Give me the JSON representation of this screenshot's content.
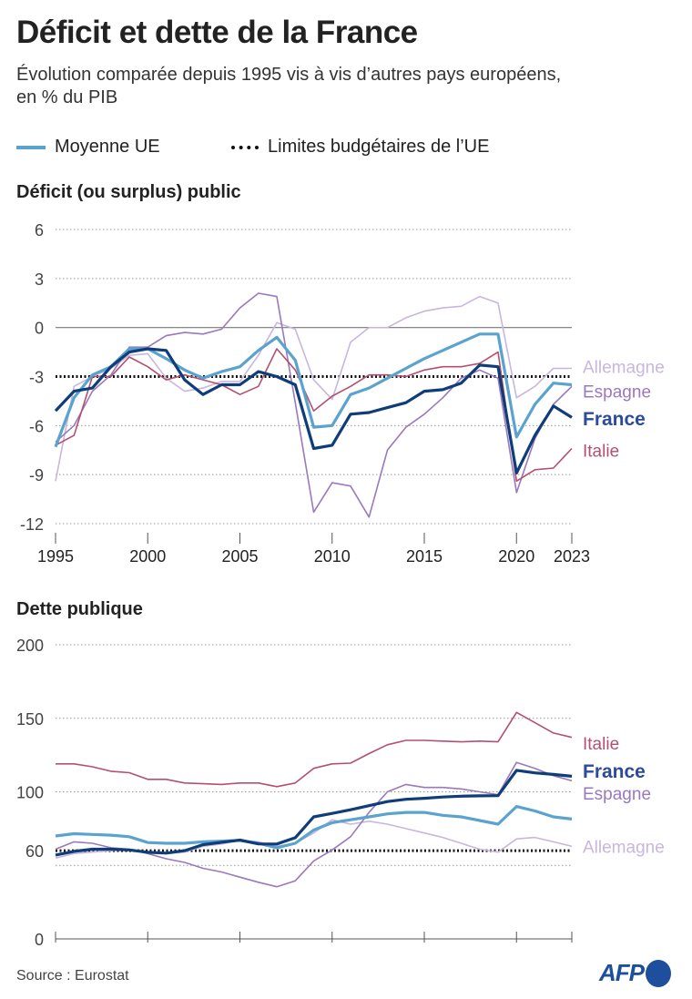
{
  "title": "Déficit et dette de la France",
  "subtitle": "Évolution comparée depuis 1995 vis à vis d’autres pays européens, en % du PIB",
  "legend": {
    "eu": "Moyenne UE",
    "limit": "Limites budgétaires de l’UE"
  },
  "source": "Source : Eurostat",
  "logo": "AFP",
  "colors": {
    "eu": "#5ba3cf",
    "france": "#0f3d7a",
    "allemagne": "#c9b6de",
    "espagne": "#9a78bd",
    "italie": "#b4506e",
    "france_label": "#2d4b9c"
  },
  "chart_data": [
    {
      "type": "line",
      "title": "Déficit (ou surplus) public",
      "ylim": [
        -12,
        6
      ],
      "yticks": [
        6,
        3,
        0,
        -3,
        -6,
        -9,
        -12
      ],
      "xticks": [
        1995,
        2000,
        2005,
        2010,
        2015,
        2020,
        2023
      ],
      "limit": -3,
      "grid": true,
      "x": [
        1995,
        1996,
        1997,
        1998,
        1999,
        2000,
        2001,
        2002,
        2003,
        2004,
        2005,
        2006,
        2007,
        2008,
        2009,
        2010,
        2011,
        2012,
        2013,
        2014,
        2015,
        2016,
        2017,
        2018,
        2019,
        2020,
        2021,
        2022,
        2023
      ],
      "series": [
        {
          "key": "allemagne",
          "name": "Allemagne",
          "values": [
            -9.4,
            -3.6,
            -3.0,
            -2.5,
            -1.7,
            -1.6,
            -3.1,
            -3.9,
            -3.7,
            -3.3,
            -3.3,
            -1.7,
            0.3,
            -0.1,
            -3.2,
            -4.4,
            -0.9,
            0.0,
            0.0,
            0.6,
            1.0,
            1.2,
            1.3,
            1.9,
            1.5,
            -4.3,
            -3.6,
            -2.5,
            -2.5
          ]
        },
        {
          "key": "espagne",
          "name": "Espagne",
          "values": [
            -7.0,
            -6.0,
            -3.9,
            -2.9,
            -1.2,
            -1.2,
            -0.5,
            -0.3,
            -0.4,
            -0.1,
            1.2,
            2.1,
            1.9,
            -4.6,
            -11.3,
            -9.5,
            -9.7,
            -11.6,
            -7.5,
            -6.1,
            -5.3,
            -4.3,
            -3.1,
            -2.6,
            -3.1,
            -10.1,
            -6.8,
            -4.7,
            -3.6
          ]
        },
        {
          "key": "italie",
          "name": "Italie",
          "values": [
            -7.2,
            -6.6,
            -3.0,
            -3.0,
            -1.8,
            -2.4,
            -3.2,
            -2.9,
            -3.2,
            -3.5,
            -4.1,
            -3.6,
            -1.3,
            -2.6,
            -5.1,
            -4.2,
            -3.6,
            -2.9,
            -2.9,
            -3.0,
            -2.6,
            -2.4,
            -2.4,
            -2.2,
            -1.5,
            -9.4,
            -8.7,
            -8.6,
            -7.4
          ]
        },
        {
          "key": "eu",
          "name": "Moyenne UE",
          "values": [
            -7.3,
            -4.3,
            -2.9,
            -2.4,
            -1.3,
            -1.3,
            -1.9,
            -2.6,
            -3.1,
            -2.7,
            -2.4,
            -1.4,
            -0.6,
            -2.0,
            -6.1,
            -6.0,
            -4.1,
            -3.7,
            -3.1,
            -2.5,
            -1.9,
            -1.4,
            -0.9,
            -0.4,
            -0.4,
            -6.7,
            -4.7,
            -3.4,
            -3.5
          ]
        },
        {
          "key": "france",
          "name": "France",
          "values": [
            -5.1,
            -3.9,
            -3.7,
            -2.4,
            -1.5,
            -1.3,
            -1.4,
            -3.2,
            -4.1,
            -3.5,
            -3.5,
            -2.7,
            -3.0,
            -3.5,
            -7.4,
            -7.2,
            -5.3,
            -5.2,
            -4.9,
            -4.6,
            -3.9,
            -3.8,
            -3.4,
            -2.3,
            -2.4,
            -8.9,
            -6.6,
            -4.8,
            -5.5
          ]
        }
      ]
    },
    {
      "type": "line",
      "title": "Dette publique",
      "ylim": [
        0,
        200
      ],
      "yticks": [
        200,
        150,
        100,
        60,
        0
      ],
      "limit": 60,
      "grid": true,
      "x": [
        1995,
        1996,
        1997,
        1998,
        1999,
        2000,
        2001,
        2002,
        2003,
        2004,
        2005,
        2006,
        2007,
        2008,
        2009,
        2010,
        2011,
        2012,
        2013,
        2014,
        2015,
        2016,
        2017,
        2018,
        2019,
        2020,
        2021,
        2022,
        2023
      ],
      "series": [
        {
          "key": "allemagne",
          "name": "Allemagne",
          "values": [
            55,
            58,
            59,
            60,
            61,
            59,
            58,
            59,
            63,
            64.5,
            67,
            66,
            63,
            65,
            72,
            81,
            78,
            80,
            78,
            75,
            72,
            69,
            65,
            61,
            59,
            68,
            69,
            66,
            63
          ]
        },
        {
          "key": "espagne",
          "name": "Espagne",
          "values": [
            61,
            66,
            65,
            62,
            61,
            58,
            54.5,
            52,
            48,
            45.5,
            42,
            38.5,
            35.5,
            39.5,
            53,
            60.5,
            69.5,
            86,
            100,
            105,
            103,
            103,
            102,
            100,
            98,
            120,
            116,
            111,
            107.5
          ]
        },
        {
          "key": "italie",
          "name": "Italie",
          "values": [
            119,
            119,
            117,
            114,
            113,
            108.5,
            108.5,
            106,
            105.5,
            105,
            106,
            106,
            103.5,
            106,
            116,
            119,
            119.5,
            126,
            132,
            135,
            135,
            134.5,
            134,
            134.5,
            134,
            154,
            147,
            140,
            137
          ]
        },
        {
          "key": "eu",
          "name": "Moyenne UE",
          "values": [
            70,
            71.5,
            71,
            70.5,
            69.5,
            65.5,
            65,
            65,
            66,
            66.5,
            67,
            65,
            62,
            65,
            74,
            79,
            81,
            83,
            85,
            86,
            86,
            84,
            83,
            80.5,
            78,
            90,
            87,
            83,
            81.5
          ]
        },
        {
          "key": "france",
          "name": "France",
          "values": [
            57,
            59.5,
            61,
            61,
            60.5,
            58.9,
            58.3,
            60,
            64.1,
            65.7,
            67.2,
            64.6,
            64.5,
            68.8,
            83,
            85.3,
            87.8,
            90.6,
            93.4,
            94.9,
            95.6,
            96.5,
            97,
            97.3,
            97.4,
            114.6,
            112.9,
            111.8,
            110.6
          ]
        }
      ]
    }
  ]
}
